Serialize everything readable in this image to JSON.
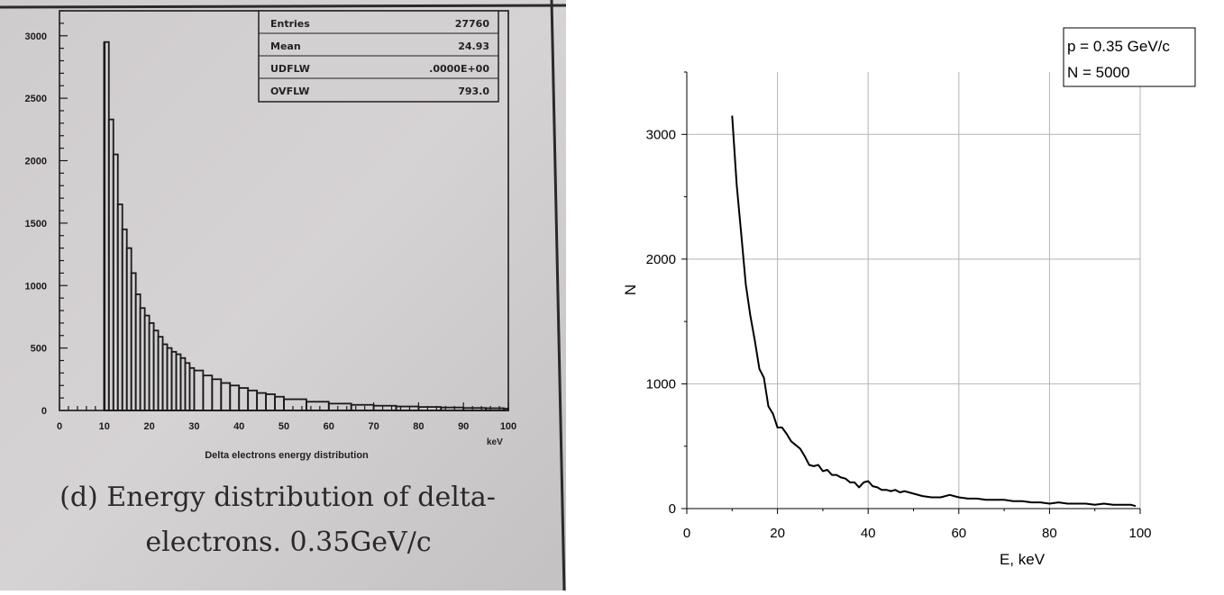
{
  "left_figure": {
    "stats": [
      {
        "label": "Entries",
        "value": "27760"
      },
      {
        "label": "Mean",
        "value": "24.93"
      },
      {
        "label": "UDFLW",
        "value": ".0000E+00"
      },
      {
        "label": "OVFLW",
        "value": "793.0"
      }
    ],
    "colors": {
      "paper": "#d2cfd0",
      "paper_dark": "#bdbabb",
      "ink": "#1a1a1a",
      "panel_frame": "#3a3a3a"
    }
  },
  "right_figure": {
    "legend_lines": [
      "p = 0.35 GeV/c",
      "N = 5000"
    ],
    "colors": {
      "line": "#000000",
      "grid": "#b4b4b4",
      "axis": "#000000"
    }
  },
  "chart_data": [
    {
      "type": "bar",
      "title": "",
      "xlabel": "Delta electrons energy distribution",
      "x_unit_label": "keV",
      "ylabel": "",
      "caption_lines": [
        "(d) Energy distribution of delta-",
        "electrons. 0.35GeV/c"
      ],
      "xlim": [
        0,
        100
      ],
      "ylim": [
        0,
        3200
      ],
      "xticks": [
        0,
        10,
        20,
        30,
        40,
        50,
        60,
        70,
        80,
        90,
        100
      ],
      "yticks": [
        0,
        500,
        1000,
        1500,
        2000,
        2500,
        3000
      ],
      "grid": false,
      "legend": "none",
      "x": [
        10,
        11,
        12,
        13,
        14,
        15,
        16,
        17,
        18,
        19,
        20,
        21,
        22,
        23,
        24,
        25,
        26,
        27,
        28,
        29,
        30,
        32,
        34,
        36,
        38,
        40,
        42,
        44,
        46,
        48,
        50,
        55,
        60,
        65,
        70,
        75,
        80,
        85,
        90,
        95,
        99
      ],
      "values": [
        2950,
        2330,
        2050,
        1650,
        1450,
        1300,
        1100,
        930,
        820,
        760,
        700,
        640,
        590,
        530,
        500,
        470,
        450,
        420,
        380,
        340,
        320,
        280,
        250,
        220,
        200,
        180,
        160,
        140,
        130,
        110,
        90,
        70,
        55,
        45,
        38,
        32,
        28,
        24,
        20,
        18,
        15
      ]
    },
    {
      "type": "line",
      "title": "",
      "xlabel": "E, keV",
      "ylabel": "N",
      "xlim": [
        0,
        100
      ],
      "ylim": [
        0,
        3500
      ],
      "xticks": [
        0,
        20,
        40,
        60,
        80,
        100
      ],
      "yticks": [
        0,
        1000,
        2000,
        3000
      ],
      "grid": true,
      "legend": "top-right",
      "series": [
        {
          "x": [
            10,
            11,
            12,
            13,
            14,
            15,
            16,
            17,
            18,
            19,
            20,
            21,
            22,
            23,
            24,
            25,
            26,
            27,
            28,
            29,
            30,
            31,
            32,
            33,
            34,
            35,
            36,
            37,
            38,
            39,
            40,
            41,
            42,
            43,
            44,
            45,
            46,
            47,
            48,
            49,
            50,
            52,
            54,
            56,
            58,
            60,
            62,
            64,
            66,
            68,
            70,
            72,
            74,
            76,
            78,
            80,
            82,
            84,
            86,
            88,
            90,
            92,
            94,
            96,
            98,
            99
          ],
          "values": [
            3150,
            2600,
            2200,
            1800,
            1550,
            1350,
            1120,
            1050,
            820,
            760,
            650,
            650,
            600,
            540,
            510,
            480,
            420,
            350,
            340,
            350,
            300,
            310,
            270,
            270,
            250,
            240,
            210,
            210,
            170,
            210,
            220,
            180,
            170,
            150,
            150,
            140,
            150,
            130,
            140,
            130,
            120,
            100,
            90,
            90,
            110,
            90,
            80,
            80,
            70,
            70,
            70,
            60,
            60,
            50,
            50,
            40,
            50,
            40,
            40,
            40,
            30,
            40,
            30,
            30,
            30,
            20
          ]
        }
      ]
    }
  ]
}
